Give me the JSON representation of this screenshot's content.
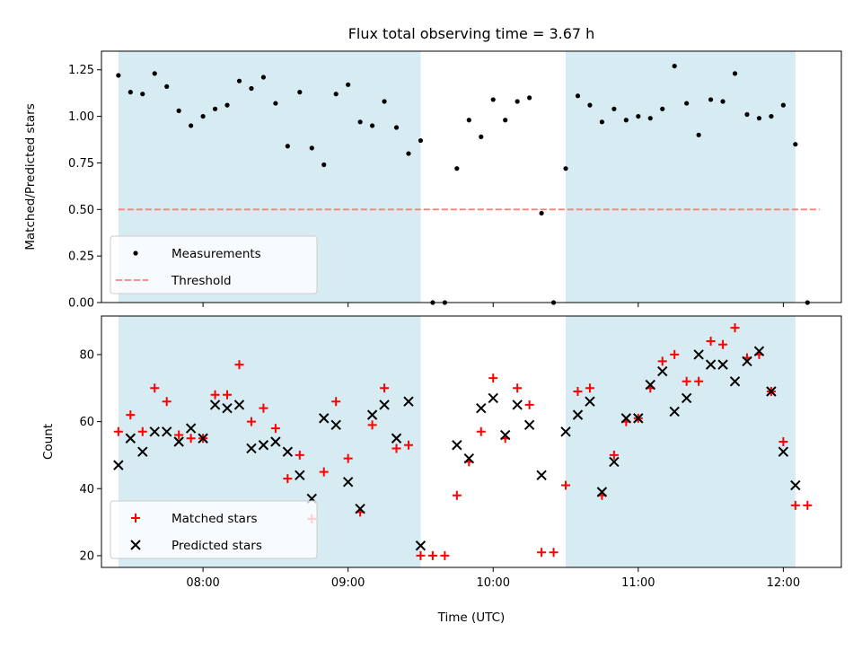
{
  "figure": {
    "title": "Flux total observing time = 3.67 h",
    "xlabel": "Time (UTC)",
    "xticks": [
      {
        "v": 8,
        "label": "08:00"
      },
      {
        "v": 9,
        "label": "09:00"
      },
      {
        "v": 10,
        "label": "10:00"
      },
      {
        "v": 11,
        "label": "11:00"
      },
      {
        "v": 12,
        "label": "12:00"
      }
    ],
    "xlim": [
      "07:18",
      "12:24"
    ],
    "shaded_intervals": [
      [
        "07:25",
        "09:30"
      ],
      [
        "10:30",
        "12:05"
      ]
    ],
    "shade_color": "#add8e6",
    "grid": false
  },
  "chart_data": [
    {
      "type": "scatter",
      "ylabel": "Matched/Predicted stars",
      "ylim": [
        0,
        1.35
      ],
      "yticks": [
        "0.00",
        "0.25",
        "0.50",
        "0.75",
        "1.00",
        "1.25"
      ],
      "legend_position": "lower-left",
      "series": [
        {
          "name": "Measurements",
          "color": "#000000",
          "marker": "dot",
          "x": [
            "07:25",
            "07:30",
            "07:35",
            "07:40",
            "07:45",
            "07:50",
            "07:55",
            "08:00",
            "08:05",
            "08:10",
            "08:15",
            "08:20",
            "08:25",
            "08:30",
            "08:35",
            "08:40",
            "08:45",
            "08:50",
            "08:55",
            "09:00",
            "09:05",
            "09:10",
            "09:15",
            "09:20",
            "09:25",
            "09:30",
            "09:35",
            "09:40",
            "09:45",
            "09:50",
            "09:55",
            "10:00",
            "10:05",
            "10:10",
            "10:15",
            "10:20",
            "10:25",
            "10:30",
            "10:35",
            "10:40",
            "10:45",
            "10:50",
            "10:55",
            "11:00",
            "11:05",
            "11:10",
            "11:15",
            "11:20",
            "11:25",
            "11:30",
            "11:35",
            "11:40",
            "11:45",
            "11:50",
            "11:55",
            "12:00",
            "12:05",
            "12:10"
          ],
          "y": [
            1.22,
            1.13,
            1.12,
            1.23,
            1.16,
            1.03,
            0.95,
            1.0,
            1.04,
            1.06,
            1.19,
            1.15,
            1.21,
            1.07,
            0.84,
            1.13,
            0.83,
            0.74,
            1.12,
            1.17,
            0.97,
            0.95,
            1.08,
            0.94,
            0.8,
            0.87,
            0.0,
            0.0,
            0.72,
            0.98,
            0.89,
            1.09,
            0.98,
            1.08,
            1.1,
            0.48,
            0.0,
            0.72,
            1.11,
            1.06,
            0.97,
            1.04,
            0.98,
            1.0,
            0.99,
            1.04,
            1.27,
            1.07,
            0.9,
            1.09,
            1.08,
            1.23,
            1.01,
            0.99,
            1.0,
            1.06,
            0.85,
            0.0
          ]
        },
        {
          "name": "Threshold",
          "color": "#ff7f7f",
          "style": "dashed",
          "x": [
            "07:25",
            "12:15"
          ],
          "y": [
            0.5,
            0.5
          ]
        }
      ]
    },
    {
      "type": "scatter",
      "ylabel": "Count",
      "ylim": [
        16.5,
        91.5
      ],
      "yticks": [
        "20",
        "40",
        "60",
        "80"
      ],
      "legend_position": "lower-left",
      "series": [
        {
          "name": "Matched stars",
          "color": "#ff0000",
          "marker": "plus",
          "x": [
            "07:25",
            "07:30",
            "07:35",
            "07:40",
            "07:45",
            "07:50",
            "07:55",
            "08:00",
            "08:05",
            "08:10",
            "08:15",
            "08:20",
            "08:25",
            "08:30",
            "08:35",
            "08:40",
            "08:45",
            "08:50",
            "08:55",
            "09:00",
            "09:05",
            "09:10",
            "09:15",
            "09:20",
            "09:25",
            "09:30",
            "09:35",
            "09:40",
            "09:45",
            "09:50",
            "09:55",
            "10:00",
            "10:05",
            "10:10",
            "10:15",
            "10:20",
            "10:25",
            "10:30",
            "10:35",
            "10:40",
            "10:45",
            "10:50",
            "10:55",
            "11:00",
            "11:05",
            "11:10",
            "11:15",
            "11:20",
            "11:25",
            "11:30",
            "11:35",
            "11:40",
            "11:45",
            "11:50",
            "11:55",
            "12:00",
            "12:05",
            "12:10"
          ],
          "y": [
            57,
            62,
            57,
            70,
            66,
            56,
            55,
            55,
            68,
            68,
            77,
            60,
            64,
            58,
            43,
            50,
            31,
            45,
            66,
            49,
            33,
            59,
            70,
            52,
            53,
            20,
            20,
            20,
            38,
            48,
            57,
            73,
            55,
            70,
            65,
            21,
            21,
            41,
            69,
            70,
            38,
            50,
            60,
            61,
            70,
            78,
            80,
            72,
            72,
            84,
            83,
            88,
            79,
            80,
            69,
            54,
            35,
            35
          ]
        },
        {
          "name": "Predicted stars",
          "color": "#000000",
          "marker": "x",
          "x": [
            "07:25",
            "07:30",
            "07:35",
            "07:40",
            "07:45",
            "07:50",
            "07:55",
            "08:00",
            "08:05",
            "08:10",
            "08:15",
            "08:20",
            "08:25",
            "08:30",
            "08:35",
            "08:40",
            "08:45",
            "08:50",
            "08:55",
            "09:00",
            "09:05",
            "09:10",
            "09:15",
            "09:20",
            "09:25",
            "09:30",
            "09:45",
            "09:50",
            "09:55",
            "10:00",
            "10:05",
            "10:10",
            "10:15",
            "10:20",
            "10:30",
            "10:35",
            "10:40",
            "10:45",
            "10:50",
            "10:55",
            "11:00",
            "11:05",
            "11:10",
            "11:15",
            "11:20",
            "11:25",
            "11:30",
            "11:35",
            "11:40",
            "11:45",
            "11:50",
            "11:55",
            "12:00",
            "12:05"
          ],
          "y": [
            47,
            55,
            51,
            57,
            57,
            54,
            58,
            55,
            65,
            64,
            65,
            52,
            53,
            54,
            51,
            44,
            37,
            61,
            59,
            42,
            34,
            62,
            65,
            55,
            66,
            23,
            53,
            49,
            64,
            67,
            56,
            65,
            59,
            44,
            57,
            62,
            66,
            39,
            48,
            61,
            61,
            71,
            75,
            63,
            67,
            80,
            77,
            77,
            72,
            78,
            81,
            69,
            51,
            41
          ]
        }
      ]
    }
  ]
}
